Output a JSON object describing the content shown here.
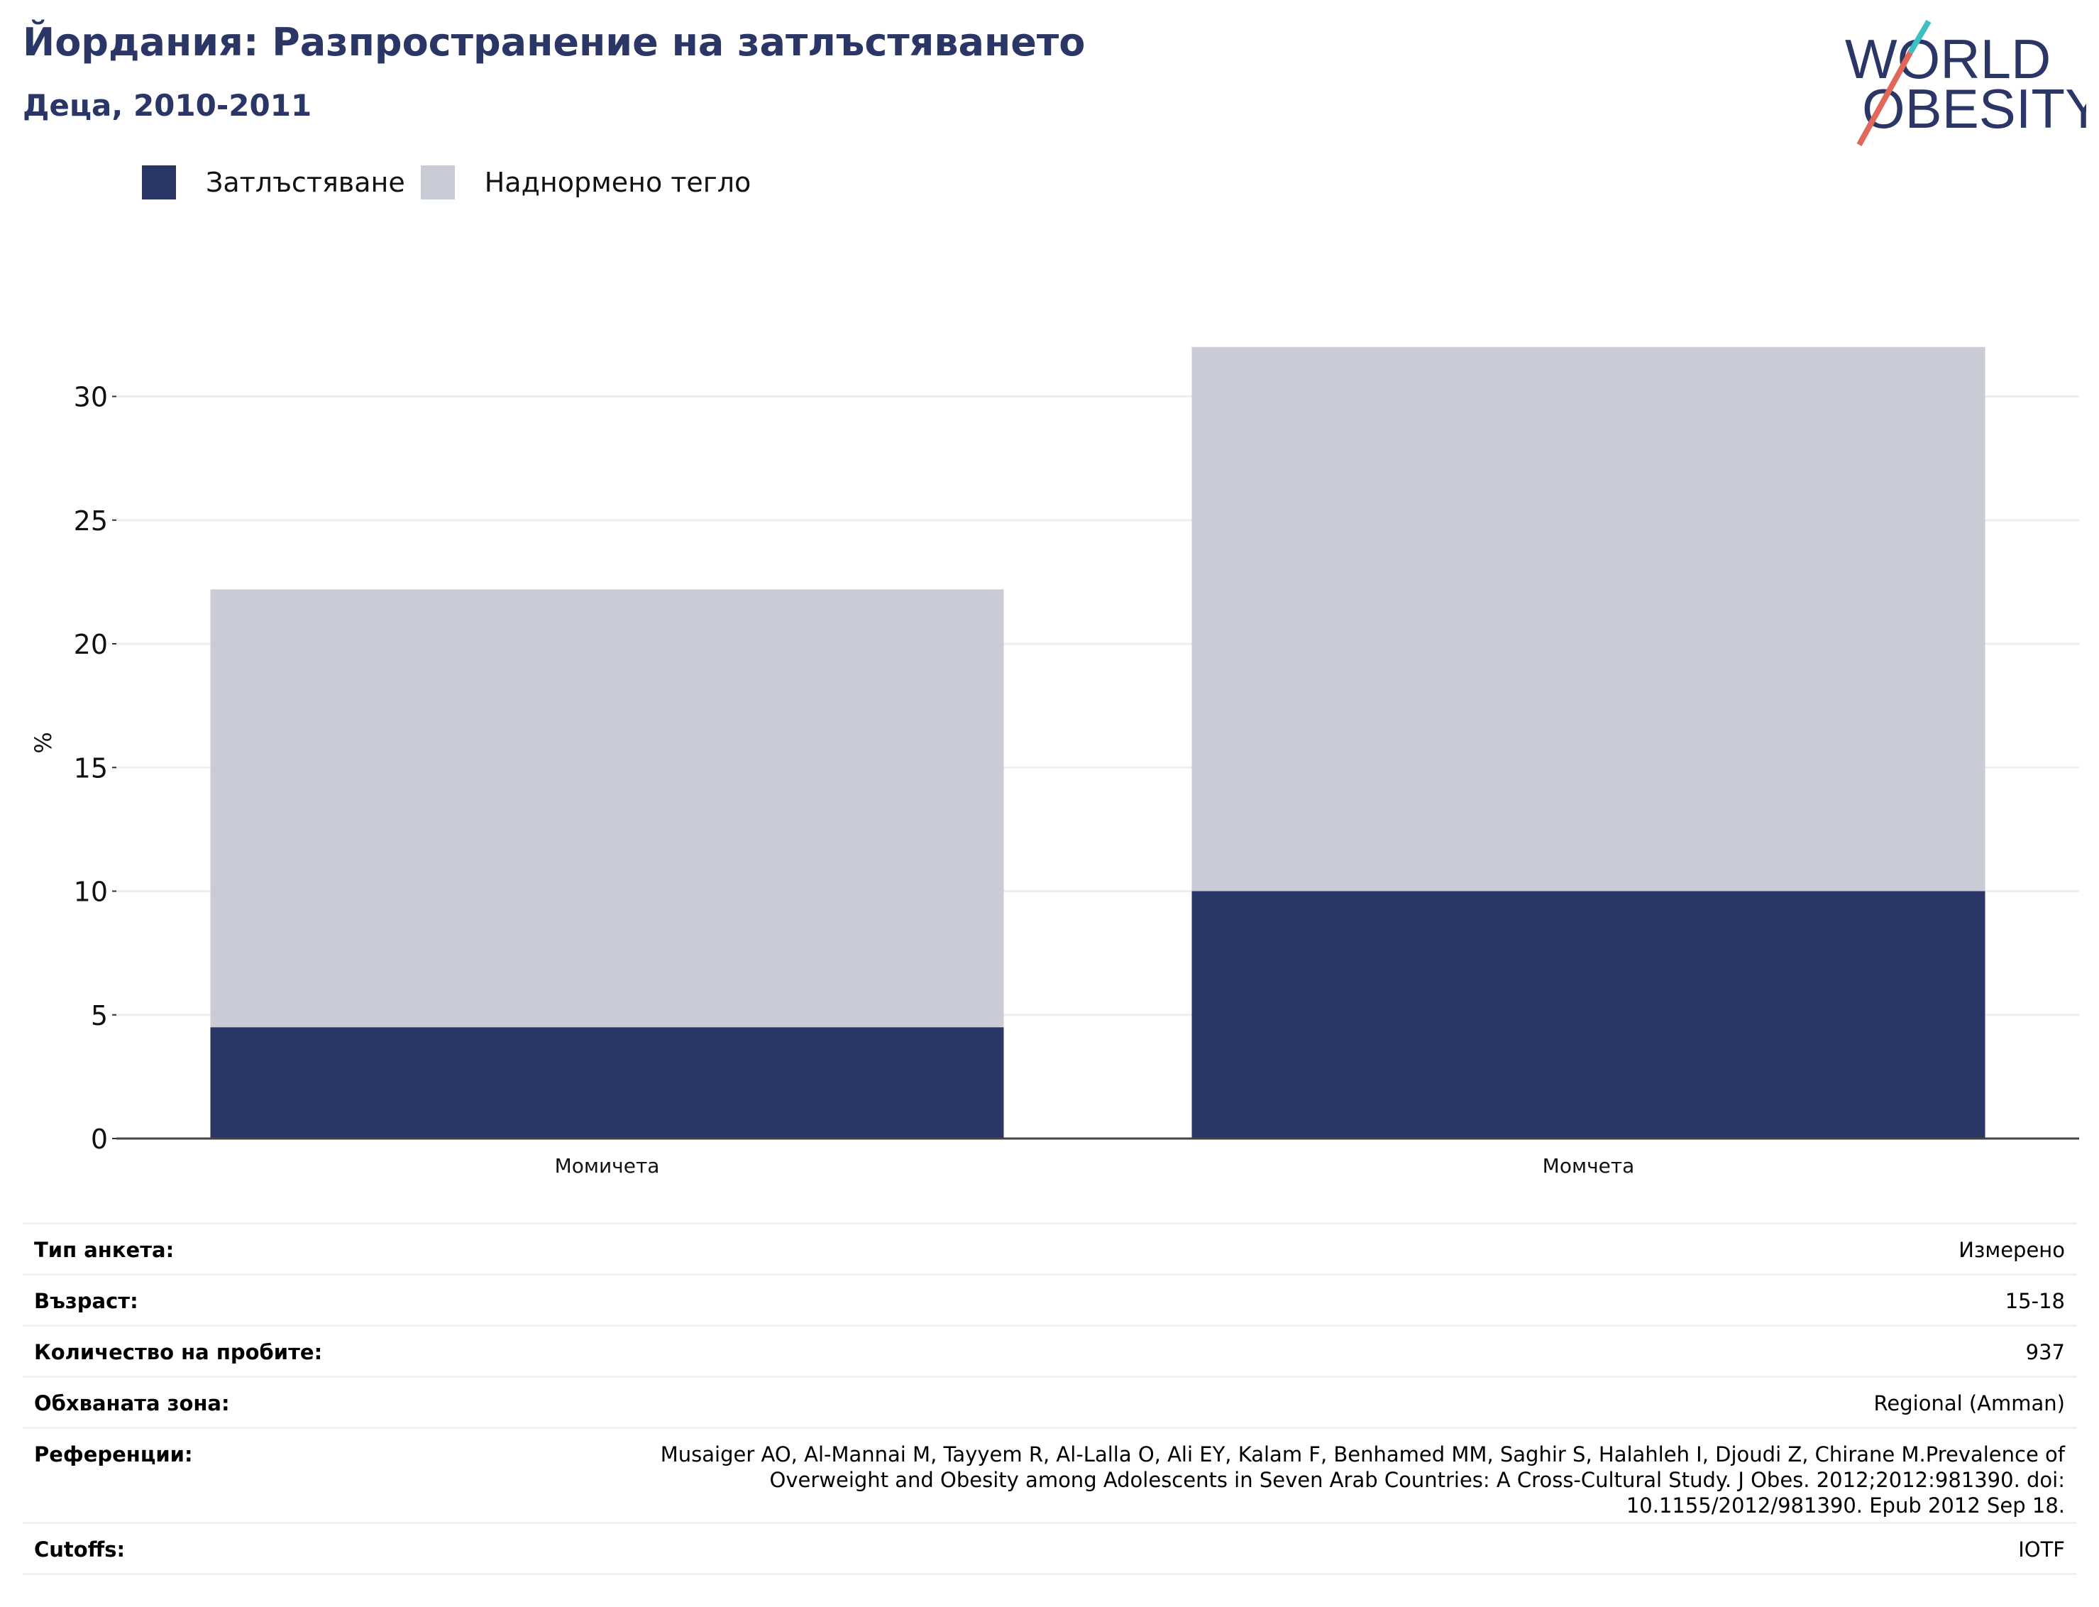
{
  "header": {
    "title": "Йордания: Разпространение на затлъстяването",
    "subtitle": "Деца, 2010-2011"
  },
  "logo": {
    "line1": "WORLD",
    "line2": "OBESITY",
    "colors": {
      "text": "#2a3665",
      "slash_red": "#e0685a",
      "slash_teal": "#3fbfc1"
    }
  },
  "legend": [
    {
      "label": "Затлъстяване",
      "color": "#2a3665"
    },
    {
      "label": "Наднормено тегло",
      "color": "#c9cbd7"
    }
  ],
  "chart_data": {
    "type": "bar",
    "stacked": true,
    "categories": [
      "Момичета",
      "Момчета"
    ],
    "series": [
      {
        "name": "Затлъстяване",
        "values": [
          4.5,
          10.0
        ],
        "color": "#2a3665"
      },
      {
        "name": "Наднормено тегло",
        "values": [
          17.7,
          22.0
        ],
        "color": "#c9cbd7"
      }
    ],
    "title": "Йордания: Разпространение на затлъстяването",
    "subtitle": "Деца, 2010-2011",
    "xlabel": "",
    "ylabel": "%",
    "ylim": [
      0,
      32
    ],
    "yticks": [
      0,
      5,
      10,
      15,
      20,
      25,
      30
    ],
    "grid": true,
    "legend_position": "top-left"
  },
  "info": {
    "rows": [
      {
        "label": "Тип анкета:",
        "value": "Измерено"
      },
      {
        "label": "Възраст:",
        "value": "15-18"
      },
      {
        "label": "Количество на пробите:",
        "value": "937"
      },
      {
        "label": "Обхваната зона:",
        "value": "Regional (Amman)"
      },
      {
        "label": "Референции:",
        "value": "Musaiger AO, Al-Mannai M, Tayyem R, Al-Lalla O, Ali EY, Kalam F, Benhamed MM, Saghir S, Halahleh I, Djoudi Z, Chirane M.Prevalence of Overweight and Obesity among Adolescents in Seven Arab Countries: A Cross-Cultural Study. J Obes. 2012;2012:981390. doi: 10.1155/2012/981390. Epub 2012 Sep 18."
      },
      {
        "label": "Cutoffs:",
        "value": "IOTF"
      }
    ]
  }
}
